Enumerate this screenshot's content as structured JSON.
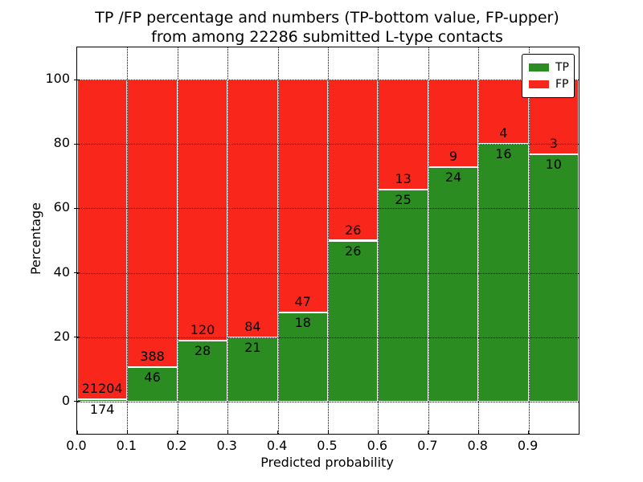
{
  "figure": {
    "title_line1": "TP /FP percentage and numbers (TP-bottom value, FP-upper)",
    "title_line2": "from among 22286 submitted L-type contacts"
  },
  "axes": {
    "xlabel": "Predicted probability",
    "ylabel": "Percentage"
  },
  "legend": {
    "position": "upper right",
    "tp_label": "TP",
    "fp_label": "FP"
  },
  "colors": {
    "tp_green": "#2a8c21",
    "fp_red": "#f9271b",
    "bar_edge": "#ffffff",
    "grid": "#000000",
    "text": "#000000",
    "background": "#ffffff"
  },
  "chart_data": {
    "type": "bar",
    "stacked": true,
    "normalized_to_percent": true,
    "title": "TP /FP percentage and numbers (TP-bottom value, FP-upper) from among 22286 submitted L-type contacts",
    "xlabel": "Predicted probability",
    "ylabel": "Percentage",
    "total_submitted_contacts": 22286,
    "xlim": [
      0.0,
      1.0
    ],
    "ylim": [
      -10,
      110
    ],
    "x_tick_labels": [
      "0.0",
      "0.1",
      "0.2",
      "0.3",
      "0.4",
      "0.5",
      "0.6",
      "0.7",
      "0.8",
      "0.9"
    ],
    "y_tick_values": [
      0,
      20,
      40,
      60,
      80,
      100
    ],
    "grid": "dotted black, drawn above bars",
    "legend_position": "upper right",
    "bin_width": 0.1,
    "categories": [
      "0.0-0.1",
      "0.1-0.2",
      "0.2-0.3",
      "0.3-0.4",
      "0.4-0.5",
      "0.5-0.6",
      "0.6-0.7",
      "0.7-0.8",
      "0.8-0.9",
      "0.9-1.0"
    ],
    "series": [
      {
        "name": "TP",
        "color": "#2a8c21",
        "counts": [
          174,
          46,
          28,
          21,
          18,
          26,
          25,
          24,
          16,
          10
        ]
      },
      {
        "name": "FP",
        "color": "#f9271b",
        "counts": [
          21204,
          388,
          120,
          84,
          47,
          26,
          13,
          9,
          4,
          3
        ]
      }
    ],
    "tp_percent_of_bin": [
      0.81,
      10.6,
      18.92,
      20.0,
      27.69,
      50.0,
      65.79,
      72.73,
      80.0,
      76.92
    ]
  }
}
